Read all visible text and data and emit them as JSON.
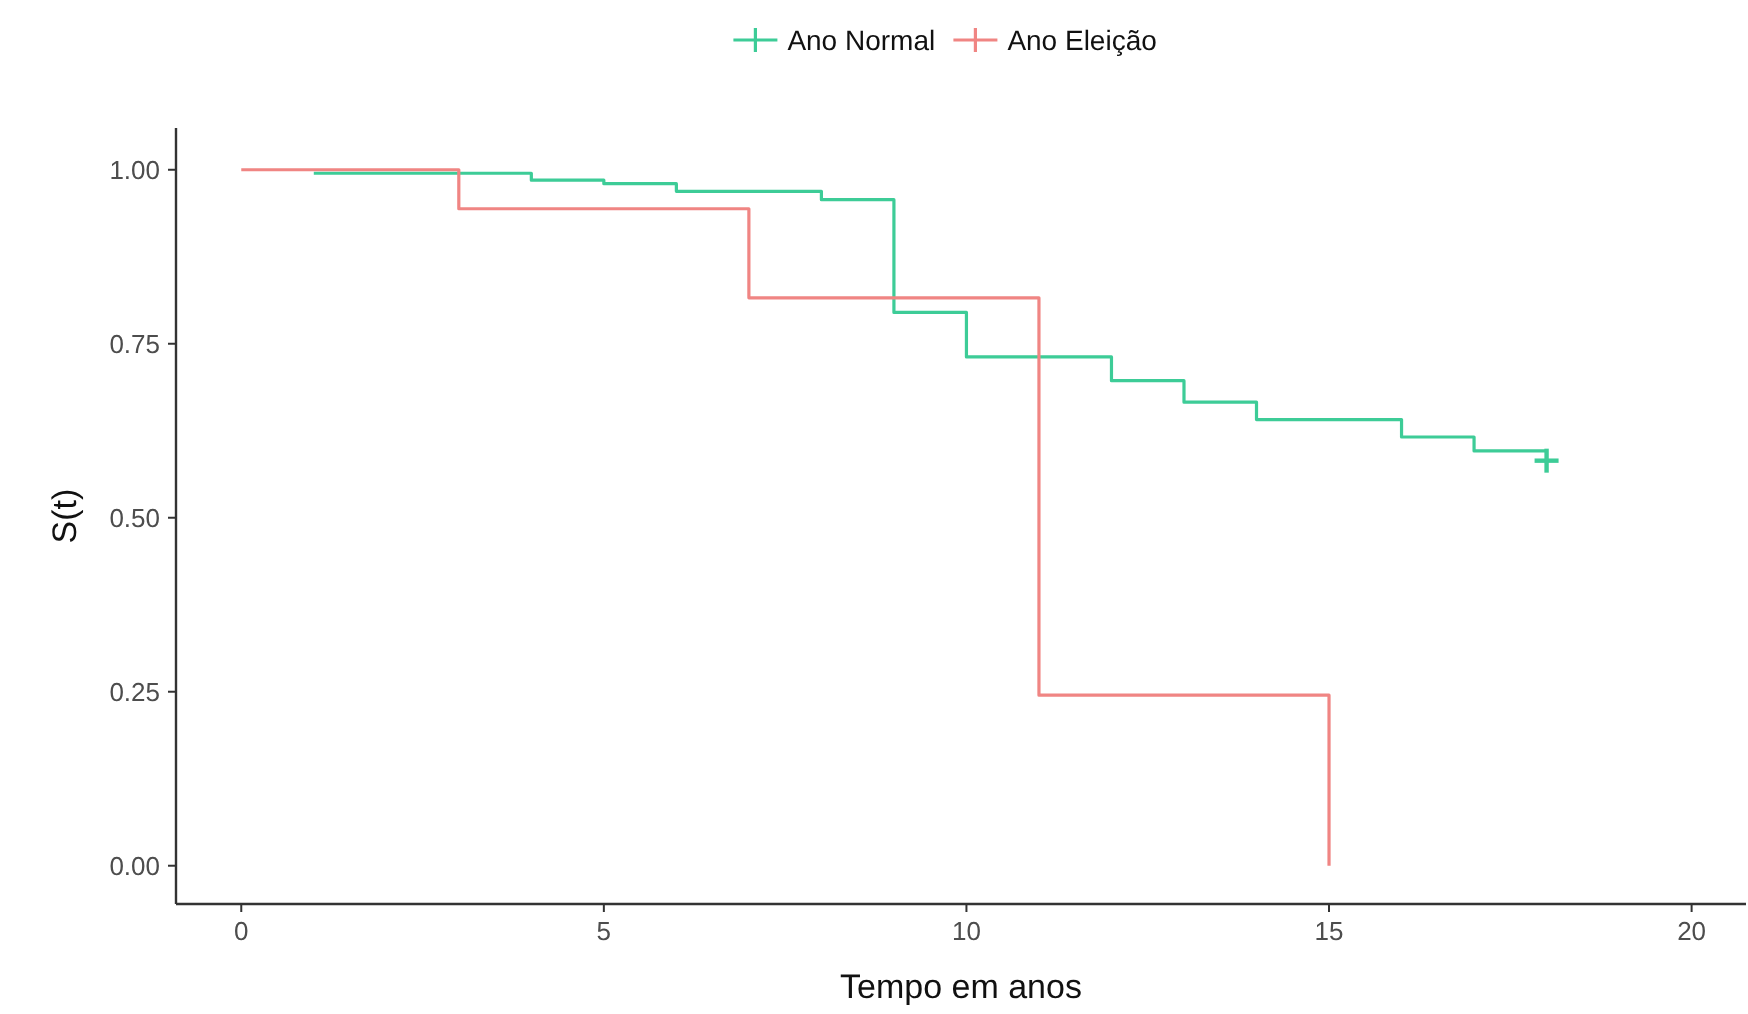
{
  "chart_data": {
    "type": "step",
    "xlabel": "Tempo em anos",
    "ylabel": "S(t)",
    "xlim": [
      -0.9,
      20.75
    ],
    "xticks": [
      0,
      5,
      10,
      15,
      20
    ],
    "ylim": [
      -0.055,
      1.06
    ],
    "yticks": [
      {
        "value": 0,
        "label": "0.00"
      },
      {
        "value": 0.25,
        "label": "0.25"
      },
      {
        "value": 0.5,
        "label": "0.50"
      },
      {
        "value": 0.75,
        "label": "0.75"
      },
      {
        "value": 1,
        "label": "1.00"
      }
    ],
    "grid": false,
    "legend": "top",
    "series": [
      {
        "name": "Ano Normal",
        "color": "#3dcc97",
        "x": [
          1,
          4,
          5,
          6,
          8,
          9,
          10,
          12,
          13,
          14,
          16,
          17,
          18
        ],
        "values": [
          0.995,
          0.985,
          0.98,
          0.969,
          0.957,
          0.795,
          0.731,
          0.697,
          0.666,
          0.641,
          0.616,
          0.596,
          0.596
        ]
      },
      {
        "name": "Ano Eleição",
        "color": "#f08583",
        "x": [
          0,
          3,
          7,
          11,
          15
        ],
        "values": [
          1,
          0.944,
          0.816,
          0.245,
          0
        ]
      },
      {
        "type": "scatter",
        "color": "#3dcc97",
        "marker": "cross",
        "x": [
          18
        ],
        "values": [
          0.582
        ]
      }
    ]
  }
}
